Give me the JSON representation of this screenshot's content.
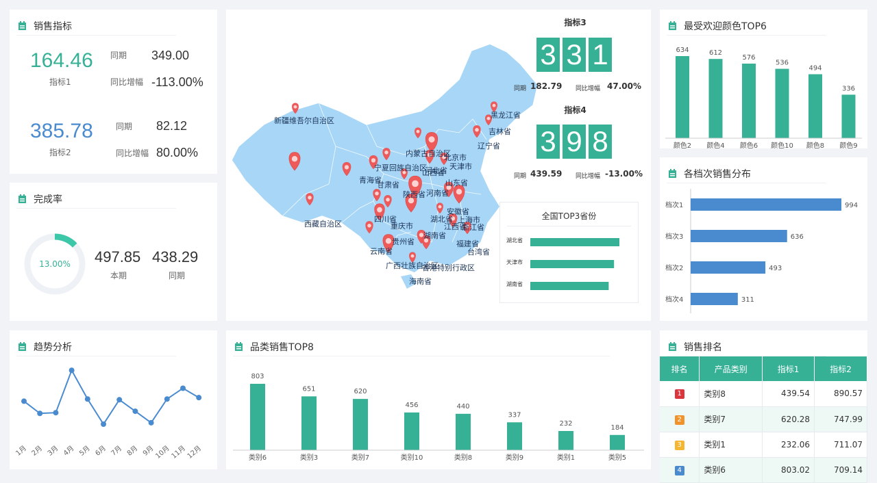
{
  "colors": {
    "green": "#36b196",
    "blue": "#4a8bcf",
    "accent_green": "#2fae8c"
  },
  "sales": {
    "title": "销售指标",
    "m1": {
      "value": "164.46",
      "name": "指标1",
      "period_label": "同期",
      "period_value": "349.00",
      "yoy_label": "同比增幅",
      "yoy_value": "-113.00%"
    },
    "m2": {
      "value": "385.78",
      "name": "指标2",
      "period_label": "同期",
      "period_value": "82.12",
      "yoy_label": "同比增幅",
      "yoy_value": "80.00%"
    }
  },
  "completion": {
    "title": "完成率",
    "percent": 13,
    "percent_label": "13.00%",
    "current": "497.85",
    "current_label": "本期",
    "period": "438.29",
    "period_label": "同期"
  },
  "map": {
    "labels": [
      "新疆维吾尔自治区",
      "黑龙江省",
      "吉林省",
      "辽宁省",
      "内蒙古自治区",
      "北京市",
      "天津市",
      "宁夏回族自治区",
      "山西省",
      "青海省",
      "甘肃省",
      "河北省",
      "山东省",
      "陕西省",
      "河南省",
      "西藏自治区",
      "四川省",
      "安徽省",
      "湖北省",
      "上海市",
      "浙江省",
      "重庆市",
      "江西省",
      "湖南省",
      "贵州省",
      "福建省",
      "台湾省",
      "云南省",
      "广西壮族自治区",
      "香港特别行政区",
      "海南省"
    ],
    "top3_title": "全国TOP3省份",
    "top3": [
      {
        "name": "湖北省",
        "value": 100
      },
      {
        "name": "天津市",
        "value": 94
      },
      {
        "name": "湖南省",
        "value": 88
      }
    ]
  },
  "kpi3": {
    "title": "指标3",
    "digits": [
      "3",
      "3",
      "1"
    ],
    "period_label": "同期",
    "period_value": "182.79",
    "yoy_label": "同比增幅",
    "yoy_value": "47.00%"
  },
  "kpi4": {
    "title": "指标4",
    "digits": [
      "3",
      "9",
      "8"
    ],
    "period_label": "同期",
    "period_value": "439.59",
    "yoy_label": "同比增幅",
    "yoy_value": "-13.00%"
  },
  "trend": {
    "title": "趋势分析"
  },
  "category": {
    "title": "品类销售TOP8"
  },
  "colors_top": {
    "title": "最受欢迎颜色TOP6"
  },
  "tiers": {
    "title": "各档次销售分布"
  },
  "ranking": {
    "title": "销售排名",
    "headers": [
      "排名",
      "产品类别",
      "指标1",
      "指标2"
    ],
    "rows": [
      {
        "rank": "1",
        "category": "类别8",
        "m1": "439.54",
        "m2": "890.57",
        "color": "#d9363e"
      },
      {
        "rank": "2",
        "category": "类别7",
        "m1": "620.28",
        "m2": "747.99",
        "color": "#f0932b"
      },
      {
        "rank": "3",
        "category": "类别1",
        "m1": "232.06",
        "m2": "711.07",
        "color": "#f5b731"
      },
      {
        "rank": "4",
        "category": "类别6",
        "m1": "803.02",
        "m2": "709.14",
        "color": "#4a8bcf"
      }
    ]
  },
  "chart_data": [
    {
      "id": "trend",
      "type": "line",
      "x": [
        "1月",
        "2月",
        "3月",
        "4月",
        "5月",
        "6月",
        "7月",
        "8月",
        "9月",
        "10月",
        "11月",
        "12月"
      ],
      "values": [
        52,
        35,
        36,
        95,
        55,
        20,
        54,
        38,
        22,
        55,
        70,
        57
      ],
      "ylim": [
        0,
        100
      ]
    },
    {
      "id": "category",
      "type": "bar",
      "categories": [
        "类别6",
        "类别3",
        "类别7",
        "类别10",
        "类别8",
        "类别9",
        "类别1",
        "类别5"
      ],
      "values": [
        803,
        651,
        620,
        456,
        440,
        337,
        232,
        184
      ]
    },
    {
      "id": "colors",
      "type": "bar",
      "categories": [
        "颜色2",
        "颜色4",
        "颜色6",
        "颜色10",
        "颜色8",
        "颜色9"
      ],
      "values": [
        634,
        612,
        576,
        536,
        494,
        336
      ]
    },
    {
      "id": "tiers",
      "type": "bar",
      "orientation": "horizontal",
      "categories": [
        "档次1",
        "档次3",
        "档次2",
        "档次4"
      ],
      "values": [
        994,
        636,
        493,
        311
      ]
    }
  ]
}
